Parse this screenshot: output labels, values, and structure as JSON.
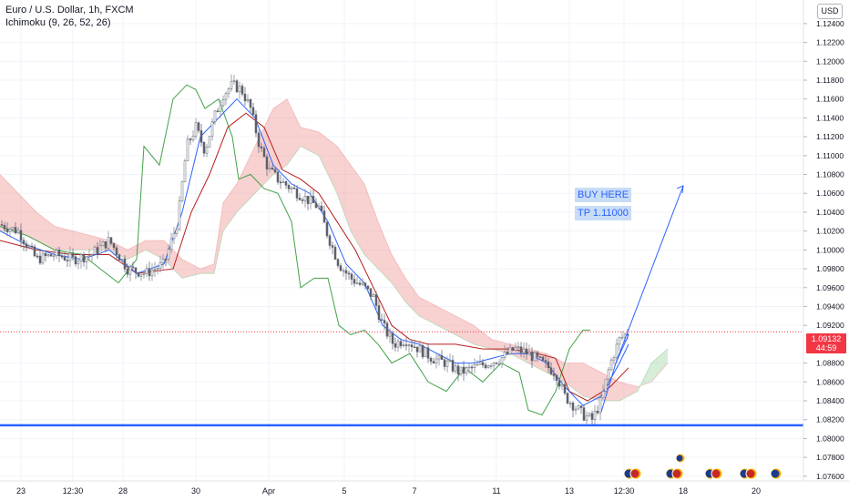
{
  "header": {
    "title": "Euro / U.S. Dollar, 1h, FXCM",
    "indicator": "Ichimoku (9, 26, 52, 26)",
    "currency_button": "USD"
  },
  "price_tag": {
    "price": "1.09132",
    "countdown": "44:59"
  },
  "notes": {
    "buy": "BUY HERE",
    "tp": "TP 1.11000"
  },
  "colors": {
    "tenkan": "#2962ff",
    "kijun": "#b71c1c",
    "chikou": "#43a047",
    "cloud_bull": "#a5d6a7",
    "cloud_bear": "#ef9a9a",
    "support": "#2962ff",
    "arrow": "#2962ff",
    "grid": "#f0f3fa",
    "price_line": "#f23645"
  },
  "chart_data": {
    "type": "candlestick",
    "symbol": "EURUSD",
    "timeframe": "1h",
    "y_ticks": [
      "1.12400",
      "1.12200",
      "1.12000",
      "1.11800",
      "1.11600",
      "1.11400",
      "1.11200",
      "1.11000",
      "1.10800",
      "1.10600",
      "1.10400",
      "1.10200",
      "1.10000",
      "1.09800",
      "1.09600",
      "1.09400",
      "1.09200",
      "1.08800",
      "1.08600",
      "1.08400",
      "1.08200",
      "1.08000",
      "1.07800",
      "1.07600"
    ],
    "ylim": [
      1.0755,
      1.1265
    ],
    "x_ticks": [
      "23",
      "12:30",
      "28",
      "30",
      "Apr",
      "5",
      "7",
      "11",
      "13",
      "12:30",
      "18",
      "20"
    ],
    "last_price": 1.09132,
    "support_level": 1.0814,
    "target": 1.11,
    "close_path": [
      [
        0,
        1.1027
      ],
      [
        20,
        1.102
      ],
      [
        40,
        1.099
      ],
      [
        60,
        1.0995
      ],
      [
        80,
        1.099
      ],
      [
        100,
        1.0995
      ],
      [
        120,
        1.101
      ],
      [
        140,
        1.098
      ],
      [
        160,
        1.0975
      ],
      [
        180,
        1.0985
      ],
      [
        195,
        1.103
      ],
      [
        205,
        1.111
      ],
      [
        215,
        1.113
      ],
      [
        225,
        1.1105
      ],
      [
        235,
        1.114
      ],
      [
        245,
        1.1165
      ],
      [
        255,
        1.1175
      ],
      [
        265,
        1.117
      ],
      [
        275,
        1.115
      ],
      [
        285,
        1.111
      ],
      [
        295,
        1.1085
      ],
      [
        305,
        1.1075
      ],
      [
        320,
        1.1065
      ],
      [
        335,
        1.1055
      ],
      [
        350,
        1.1045
      ],
      [
        360,
        1.1015
      ],
      [
        372,
        1.0985
      ],
      [
        385,
        1.097
      ],
      [
        400,
        1.096
      ],
      [
        410,
        1.095
      ],
      [
        420,
        1.092
      ],
      [
        432,
        1.09
      ],
      [
        445,
        1.0905
      ],
      [
        460,
        1.0895
      ],
      [
        475,
        1.0885
      ],
      [
        490,
        1.088
      ],
      [
        505,
        1.087
      ],
      [
        520,
        1.0875
      ],
      [
        535,
        1.088
      ],
      [
        550,
        1.0885
      ],
      [
        565,
        1.0895
      ],
      [
        580,
        1.089
      ],
      [
        595,
        1.088
      ],
      [
        610,
        1.087
      ],
      [
        620,
        1.0845
      ],
      [
        630,
        1.0835
      ],
      [
        640,
        1.0825
      ],
      [
        650,
        1.082
      ],
      [
        660,
        1.084
      ],
      [
        670,
        1.088
      ],
      [
        680,
        1.0905
      ],
      [
        690,
        1.0913
      ]
    ],
    "tenkan": [
      [
        0,
        1.102
      ],
      [
        30,
        1.1005
      ],
      [
        60,
        1.0995
      ],
      [
        90,
        1.099
      ],
      [
        120,
        1.1
      ],
      [
        150,
        1.0975
      ],
      [
        180,
        1.0985
      ],
      [
        200,
        1.104
      ],
      [
        220,
        1.112
      ],
      [
        240,
        1.114
      ],
      [
        260,
        1.116
      ],
      [
        280,
        1.114
      ],
      [
        300,
        1.109
      ],
      [
        320,
        1.107
      ],
      [
        340,
        1.106
      ],
      [
        360,
        1.103
      ],
      [
        380,
        1.0985
      ],
      [
        400,
        1.0965
      ],
      [
        420,
        1.092
      ],
      [
        440,
        1.0905
      ],
      [
        460,
        1.09
      ],
      [
        480,
        1.089
      ],
      [
        500,
        1.088
      ],
      [
        520,
        1.088
      ],
      [
        540,
        1.0885
      ],
      [
        560,
        1.089
      ],
      [
        580,
        1.089
      ],
      [
        600,
        1.088
      ],
      [
        620,
        1.0855
      ],
      [
        640,
        1.0835
      ],
      [
        660,
        1.0845
      ],
      [
        680,
        1.088
      ],
      [
        690,
        1.09
      ]
    ],
    "kijun": [
      [
        0,
        1.101
      ],
      [
        40,
        1.1
      ],
      [
        80,
        1.0995
      ],
      [
        120,
        1.0995
      ],
      [
        150,
        1.0975
      ],
      [
        190,
        1.098
      ],
      [
        210,
        1.104
      ],
      [
        230,
        1.108
      ],
      [
        250,
        1.113
      ],
      [
        270,
        1.1145
      ],
      [
        290,
        1.113
      ],
      [
        310,
        1.1085
      ],
      [
        330,
        1.1075
      ],
      [
        350,
        1.106
      ],
      [
        370,
        1.103
      ],
      [
        390,
        1.1
      ],
      [
        410,
        1.096
      ],
      [
        430,
        1.092
      ],
      [
        450,
        1.0905
      ],
      [
        470,
        1.09
      ],
      [
        500,
        1.09
      ],
      [
        530,
        1.0895
      ],
      [
        560,
        1.0895
      ],
      [
        590,
        1.089
      ],
      [
        610,
        1.0885
      ],
      [
        625,
        1.085
      ],
      [
        645,
        1.084
      ],
      [
        670,
        1.0855
      ],
      [
        690,
        1.0875
      ]
    ],
    "chikou": [
      [
        0,
        1.1025
      ],
      [
        30,
        1.1015
      ],
      [
        60,
        1.1
      ],
      [
        90,
        1.0995
      ],
      [
        110,
        1.098
      ],
      [
        130,
        1.0965
      ],
      [
        150,
        1.099
      ],
      [
        158,
        1.111
      ],
      [
        175,
        1.109
      ],
      [
        190,
        1.116
      ],
      [
        205,
        1.1175
      ],
      [
        215,
        1.117
      ],
      [
        225,
        1.115
      ],
      [
        240,
        1.116
      ],
      [
        255,
        1.112
      ],
      [
        262,
        1.1075
      ],
      [
        275,
        1.108
      ],
      [
        290,
        1.1065
      ],
      [
        305,
        1.106
      ],
      [
        320,
        1.103
      ],
      [
        330,
        1.096
      ],
      [
        345,
        1.097
      ],
      [
        360,
        1.097
      ],
      [
        372,
        1.092
      ],
      [
        385,
        1.091
      ],
      [
        400,
        1.0915
      ],
      [
        415,
        1.09
      ],
      [
        430,
        1.088
      ],
      [
        450,
        1.089
      ],
      [
        470,
        1.086
      ],
      [
        490,
        1.085
      ],
      [
        510,
        1.0875
      ],
      [
        530,
        1.086
      ],
      [
        550,
        1.088
      ],
      [
        570,
        1.087
      ],
      [
        580,
        1.083
      ],
      [
        595,
        1.0825
      ],
      [
        610,
        1.085
      ],
      [
        625,
        1.0895
      ],
      [
        640,
        1.0915
      ],
      [
        648,
        1.0915
      ]
    ],
    "cloud_a": [
      [
        0,
        1.108
      ],
      [
        20,
        1.106
      ],
      [
        40,
        1.104
      ],
      [
        60,
        1.1025
      ],
      [
        80,
        1.102
      ],
      [
        100,
        1.1015
      ],
      [
        120,
        1.101
      ],
      [
        140,
        1.1
      ],
      [
        160,
        1.101
      ],
      [
        180,
        1.101
      ],
      [
        200,
        1.099
      ],
      [
        220,
        1.098
      ],
      [
        235,
        1.0985
      ],
      [
        245,
        1.105
      ],
      [
        260,
        1.107
      ],
      [
        280,
        1.111
      ],
      [
        300,
        1.115
      ],
      [
        315,
        1.116
      ],
      [
        330,
        1.113
      ],
      [
        350,
        1.1125
      ],
      [
        370,
        1.111
      ],
      [
        385,
        1.109
      ],
      [
        400,
        1.107
      ],
      [
        415,
        1.103
      ],
      [
        430,
        1.0995
      ],
      [
        445,
        1.097
      ],
      [
        460,
        1.095
      ],
      [
        480,
        1.094
      ],
      [
        500,
        1.093
      ],
      [
        520,
        1.092
      ],
      [
        540,
        1.0905
      ],
      [
        560,
        1.09
      ],
      [
        580,
        1.0895
      ],
      [
        600,
        1.089
      ],
      [
        620,
        1.088
      ],
      [
        640,
        1.088
      ],
      [
        660,
        1.087
      ],
      [
        680,
        1.086
      ],
      [
        700,
        1.0855
      ],
      [
        715,
        1.086
      ],
      [
        733,
        1.088
      ]
    ],
    "cloud_b": [
      [
        0,
        1.102
      ],
      [
        20,
        1.102
      ],
      [
        40,
        1.101
      ],
      [
        60,
        1.1
      ],
      [
        80,
        1.1
      ],
      [
        100,
        1.1
      ],
      [
        120,
        1.1
      ],
      [
        140,
        1.099
      ],
      [
        160,
        1.1
      ],
      [
        180,
        1.099
      ],
      [
        200,
        1.097
      ],
      [
        220,
        1.0975
      ],
      [
        235,
        1.0975
      ],
      [
        245,
        1.102
      ],
      [
        260,
        1.104
      ],
      [
        280,
        1.106
      ],
      [
        300,
        1.108
      ],
      [
        315,
        1.109
      ],
      [
        330,
        1.111
      ],
      [
        350,
        1.11
      ],
      [
        370,
        1.106
      ],
      [
        385,
        1.102
      ],
      [
        400,
        1.0995
      ],
      [
        415,
        1.098
      ],
      [
        430,
        1.0965
      ],
      [
        445,
        1.0945
      ],
      [
        460,
        1.093
      ],
      [
        480,
        1.092
      ],
      [
        500,
        1.091
      ],
      [
        520,
        1.09
      ],
      [
        540,
        1.0895
      ],
      [
        560,
        1.089
      ],
      [
        580,
        1.088
      ],
      [
        600,
        1.087
      ],
      [
        620,
        1.086
      ],
      [
        640,
        1.0845
      ],
      [
        660,
        1.084
      ],
      [
        680,
        1.084
      ],
      [
        700,
        1.085
      ],
      [
        715,
        1.088
      ],
      [
        733,
        1.0895
      ]
    ],
    "projection": {
      "from": [
        660,
        1.0828
      ],
      "to": [
        750,
        1.1068
      ]
    }
  }
}
